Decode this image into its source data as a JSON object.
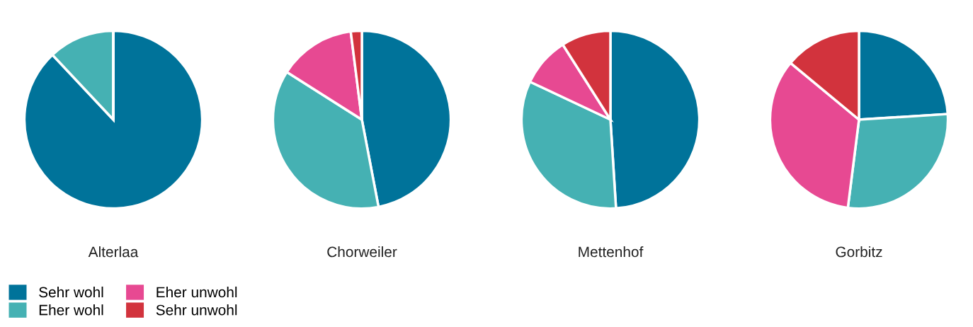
{
  "chart_data": [
    {
      "type": "pie",
      "title": "Alterlaa",
      "categories": [
        "Sehr wohl",
        "Eher wohl",
        "Eher unwohl",
        "Sehr unwohl"
      ],
      "values": [
        88,
        12,
        0,
        0
      ],
      "colors": [
        "#00739a",
        "#45b1b3",
        "#e74992",
        "#d2333d"
      ],
      "legend": "bottom"
    },
    {
      "type": "pie",
      "title": "Chorweiler",
      "categories": [
        null,
        null,
        null,
        null
      ],
      "values": [
        47,
        37,
        14,
        2
      ],
      "colors": [
        "#00739a",
        "#45b1b3",
        "#e74992",
        "#d2333d"
      ]
    },
    {
      "type": "pie",
      "title": "Mettenhof",
      "categories": [
        null,
        null,
        null,
        null
      ],
      "values": [
        49,
        33,
        9,
        9
      ],
      "colors": [
        "#00739a",
        "#45b1b3",
        "#e74992",
        "#d2333d"
      ]
    },
    {
      "type": "pie",
      "title": "Gorbitz",
      "categories": [
        null,
        null,
        null,
        null
      ],
      "values": [
        24,
        28,
        34,
        14
      ],
      "colors": [
        "#00739a",
        "#45b1b3",
        "#e74992",
        "#d2333d"
      ]
    }
  ]
}
